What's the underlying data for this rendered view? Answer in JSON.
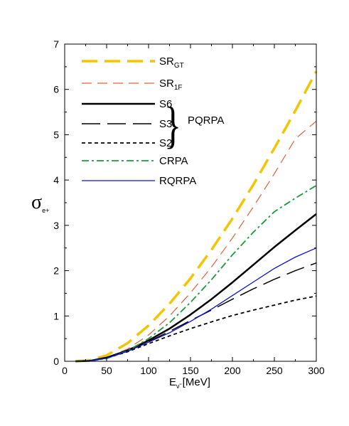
{
  "chart_data": {
    "type": "line",
    "xlabel": {
      "main": "E",
      "sub": "ν̃",
      "unit": " [MeV]"
    },
    "ylabel": {
      "main": "σ",
      "sub": "e+"
    },
    "xlim": [
      0,
      300
    ],
    "ylim": [
      0,
      7
    ],
    "xticks": [
      0,
      50,
      100,
      150,
      200,
      250,
      300
    ],
    "yticks": [
      0,
      1,
      2,
      3,
      4,
      5,
      6,
      7
    ],
    "grid": false,
    "legend_position": "top-left",
    "group_label": "PQRPA",
    "series": [
      {
        "name": "SR",
        "name_sub": "GT",
        "color": "#f2c500",
        "dash": "22,10",
        "width": 3.5,
        "x": [
          13,
          30,
          50,
          75,
          100,
          125,
          150,
          175,
          200,
          225,
          250,
          275,
          300
        ],
        "y": [
          0,
          0.02,
          0.13,
          0.4,
          0.79,
          1.27,
          1.83,
          2.46,
          3.15,
          3.9,
          4.7,
          5.53,
          6.4
        ]
      },
      {
        "name": "SR",
        "name_sub": "1F",
        "color": "#e0603a",
        "dash": "14,8",
        "width": 1.2,
        "x": [
          13,
          30,
          50,
          75,
          100,
          125,
          150,
          175,
          200,
          225,
          250,
          275,
          300
        ],
        "y": [
          0,
          0.01,
          0.08,
          0.27,
          0.58,
          1.0,
          1.51,
          2.08,
          2.72,
          3.41,
          4.14,
          4.91,
          5.3
        ]
      },
      {
        "name": "S6",
        "color": "#000000",
        "dash": "",
        "width": 2.5,
        "x": [
          13,
          30,
          50,
          75,
          100,
          125,
          150,
          175,
          200,
          225,
          250,
          275,
          300
        ],
        "y": [
          0,
          0.01,
          0.08,
          0.24,
          0.46,
          0.72,
          1.03,
          1.37,
          1.74,
          2.13,
          2.52,
          2.89,
          3.25
        ]
      },
      {
        "name": "S3",
        "color": "#000000",
        "dash": "26,10",
        "width": 1.5,
        "x": [
          13,
          30,
          50,
          75,
          100,
          125,
          150,
          175,
          200,
          225,
          250,
          275,
          300
        ],
        "y": [
          0,
          0.01,
          0.07,
          0.22,
          0.43,
          0.66,
          0.9,
          1.13,
          1.37,
          1.6,
          1.81,
          2.0,
          2.17
        ]
      },
      {
        "name": "S2",
        "color": "#000000",
        "dash": "5,4",
        "width": 1.8,
        "x": [
          13,
          30,
          50,
          75,
          100,
          125,
          150,
          175,
          200,
          225,
          250,
          275,
          300
        ],
        "y": [
          0,
          0.01,
          0.07,
          0.21,
          0.39,
          0.56,
          0.72,
          0.87,
          1.01,
          1.13,
          1.24,
          1.35,
          1.44
        ]
      },
      {
        "name": "CRPA",
        "color": "#1a9a3a",
        "dash": "10,4,3,4",
        "width": 1.8,
        "x": [
          13,
          30,
          50,
          75,
          100,
          125,
          150,
          175,
          200,
          225,
          250,
          275,
          300
        ],
        "y": [
          0,
          0.01,
          0.06,
          0.23,
          0.5,
          0.85,
          1.3,
          1.8,
          2.35,
          2.85,
          3.3,
          3.6,
          3.88
        ]
      },
      {
        "name": "RQRPA",
        "color": "#1010d0",
        "dash": "",
        "width": 1.3,
        "x": [
          13,
          30,
          50,
          75,
          100,
          125,
          150,
          175,
          200,
          225,
          250,
          275,
          300
        ],
        "y": [
          0,
          0.01,
          0.07,
          0.22,
          0.42,
          0.63,
          0.88,
          1.15,
          1.45,
          1.75,
          2.05,
          2.3,
          2.5
        ]
      }
    ]
  }
}
